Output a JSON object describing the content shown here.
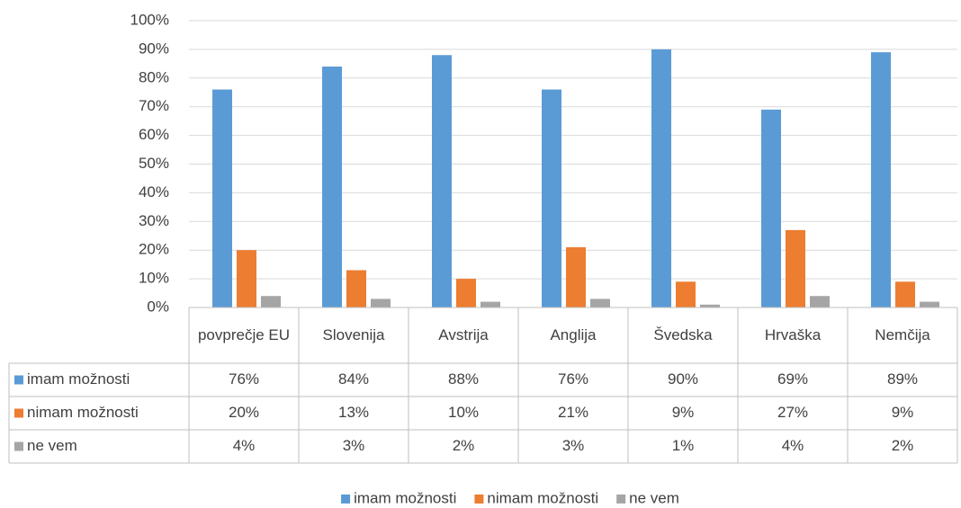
{
  "chart_data": {
    "type": "bar",
    "categories": [
      "povprečje EU",
      "Slovenija",
      "Avstrija",
      "Anglija",
      "Švedska",
      "Hrvaška",
      "Nemčija"
    ],
    "series": [
      {
        "name": "imam možnosti",
        "color": "#5b9bd5",
        "values": [
          76,
          84,
          88,
          76,
          90,
          69,
          89
        ],
        "value_labels": [
          "76%",
          "84%",
          "88%",
          "76%",
          "90%",
          "69%",
          "89%"
        ]
      },
      {
        "name": "nimam možnosti",
        "color": "#ed7d31",
        "values": [
          20,
          13,
          10,
          21,
          9,
          27,
          9
        ],
        "value_labels": [
          "20%",
          "13%",
          "10%",
          "21%",
          "9%",
          "27%",
          "9%"
        ]
      },
      {
        "name": "ne vem",
        "color": "#a5a5a5",
        "values": [
          4,
          3,
          2,
          3,
          1,
          4,
          2
        ],
        "value_labels": [
          "4%",
          "3%",
          "2%",
          "3%",
          "1%",
          "4%",
          "2%"
        ]
      }
    ],
    "ylim": [
      0,
      100
    ],
    "yticks": [
      {
        "value": 0,
        "label": "0%"
      },
      {
        "value": 10,
        "label": "10%"
      },
      {
        "value": 20,
        "label": "20%"
      },
      {
        "value": 30,
        "label": "30%"
      },
      {
        "value": 40,
        "label": "40%"
      },
      {
        "value": 50,
        "label": "50%"
      },
      {
        "value": 60,
        "label": "60%"
      },
      {
        "value": 70,
        "label": "70%"
      },
      {
        "value": 80,
        "label": "80%"
      },
      {
        "value": 90,
        "label": "90%"
      },
      {
        "value": 100,
        "label": "100%"
      }
    ],
    "grid": true,
    "legend": "bottom"
  }
}
